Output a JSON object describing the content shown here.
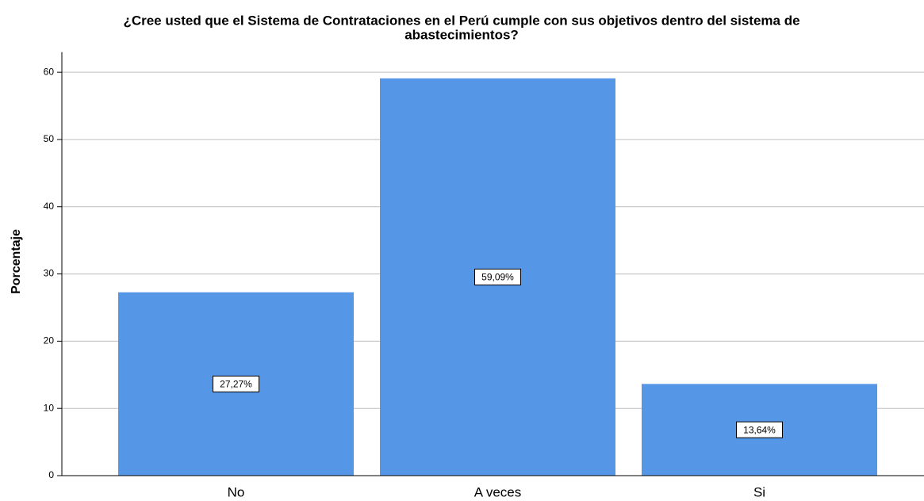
{
  "chart_data": {
    "type": "bar",
    "title": [
      "¿Cree usted que el Sistema de Contrataciones en el Perú cumple con sus objetivos dentro del sistema de",
      "abastecimientos?"
    ],
    "y_label": "Porcentaje",
    "categories": [
      "No",
      "A veces",
      "Si"
    ],
    "values": [
      27.27,
      59.09,
      13.64
    ],
    "value_labels": [
      "27,27%",
      "59,09%",
      "13,64%"
    ],
    "color": "#5596e6",
    "ylim": [
      0,
      63
    ],
    "yticks": [
      0,
      10,
      20,
      30,
      40,
      50,
      60
    ],
    "grid": true
  }
}
